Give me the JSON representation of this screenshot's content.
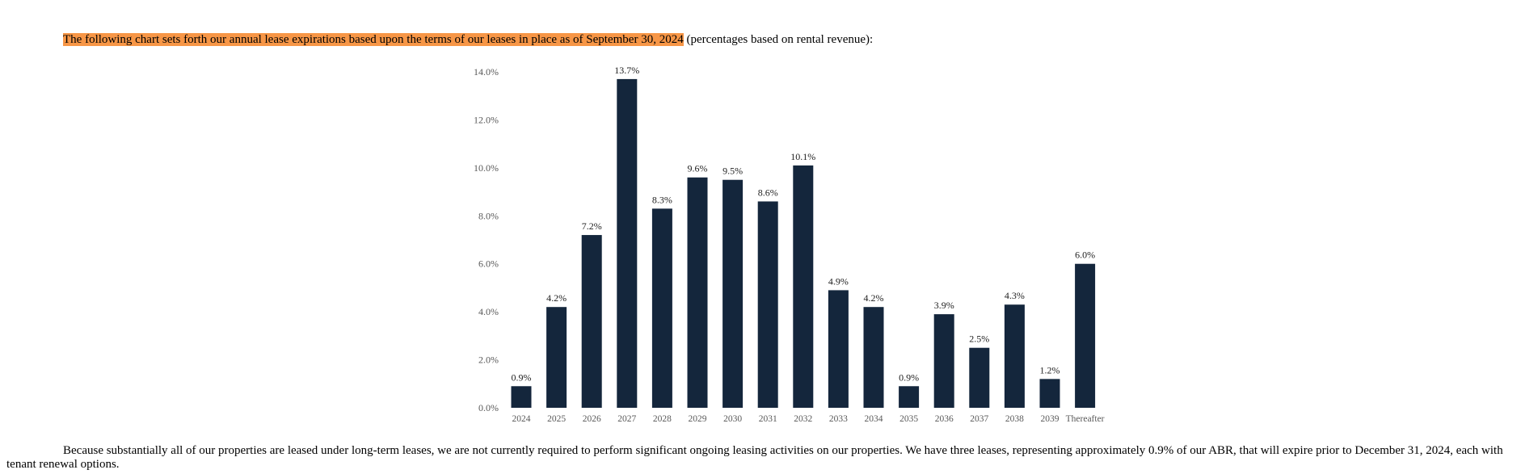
{
  "intro": {
    "highlighted": "The following chart sets forth our annual lease expirations based upon the terms of our leases in place as of September 30, 2024",
    "rest": " (percentages based on rental revenue):"
  },
  "closing_text": "Because substantially all of our properties are leased under long-term leases, we are not currently required to perform significant ongoing leasing activities on our properties. We have three leases, representing approximately 0.9% of our ABR, that will expire prior to December 31, 2024, each with tenant renewal options.",
  "colors": {
    "bar": "#14263c",
    "highlight": "#f79646",
    "axis_text": "#595959"
  },
  "chart_data": {
    "type": "bar",
    "categories": [
      "2024",
      "2025",
      "2026",
      "2027",
      "2028",
      "2029",
      "2030",
      "2031",
      "2032",
      "2033",
      "2034",
      "2035",
      "2036",
      "2037",
      "2038",
      "2039",
      "Thereafter"
    ],
    "values": [
      0.9,
      4.2,
      7.2,
      13.7,
      8.3,
      9.6,
      9.5,
      8.6,
      10.1,
      4.9,
      4.2,
      0.9,
      3.9,
      2.5,
      4.3,
      1.2,
      6.0
    ],
    "data_labels": [
      "0.9%",
      "4.2%",
      "7.2%",
      "13.7%",
      "8.3%",
      "9.6%",
      "9.5%",
      "8.6%",
      "10.1%",
      "4.9%",
      "4.2%",
      "0.9%",
      "3.9%",
      "2.5%",
      "4.3%",
      "1.2%",
      "6.0%"
    ],
    "y_ticks": [
      "0.0%",
      "2.0%",
      "4.0%",
      "6.0%",
      "8.0%",
      "10.0%",
      "12.0%",
      "14.0%"
    ],
    "ylim": [
      0,
      14
    ],
    "grid": false,
    "legend": "none"
  }
}
